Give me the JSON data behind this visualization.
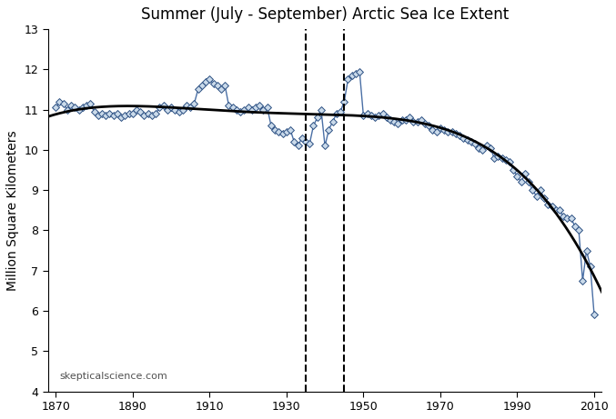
{
  "title": "Summer (July - September) Arctic Sea Ice Extent",
  "ylabel": "Million Square Kilometers",
  "xlim": [
    1868,
    2012
  ],
  "ylim": [
    4,
    13
  ],
  "xticks": [
    1870,
    1890,
    1910,
    1930,
    1950,
    1970,
    1990,
    2010
  ],
  "yticks": [
    4,
    5,
    6,
    7,
    8,
    9,
    10,
    11,
    12,
    13
  ],
  "dashed_lines": [
    1935,
    1945
  ],
  "watermark": "skepticalscience.com",
  "line_color": "#4A6FA5",
  "marker_face_color": "#CADAEA",
  "marker_edge_color": "#2B4F82",
  "trend_color": "black",
  "years": [
    1870,
    1871,
    1872,
    1873,
    1874,
    1875,
    1876,
    1877,
    1878,
    1879,
    1880,
    1881,
    1882,
    1883,
    1884,
    1885,
    1886,
    1887,
    1888,
    1889,
    1890,
    1891,
    1892,
    1893,
    1894,
    1895,
    1896,
    1897,
    1898,
    1899,
    1900,
    1901,
    1902,
    1903,
    1904,
    1905,
    1906,
    1907,
    1908,
    1909,
    1910,
    1911,
    1912,
    1913,
    1914,
    1915,
    1916,
    1917,
    1918,
    1919,
    1920,
    1921,
    1922,
    1923,
    1924,
    1925,
    1926,
    1927,
    1928,
    1929,
    1930,
    1931,
    1932,
    1933,
    1934,
    1935,
    1936,
    1937,
    1938,
    1939,
    1940,
    1941,
    1942,
    1943,
    1944,
    1945,
    1946,
    1947,
    1948,
    1949,
    1950,
    1951,
    1952,
    1953,
    1954,
    1955,
    1956,
    1957,
    1958,
    1959,
    1960,
    1961,
    1962,
    1963,
    1964,
    1965,
    1966,
    1967,
    1968,
    1969,
    1970,
    1971,
    1972,
    1973,
    1974,
    1975,
    1976,
    1977,
    1978,
    1979,
    1980,
    1981,
    1982,
    1983,
    1984,
    1985,
    1986,
    1987,
    1988,
    1989,
    1990,
    1991,
    1992,
    1993,
    1994,
    1995,
    1996,
    1997,
    1998,
    1999,
    2000,
    2001,
    2002,
    2003,
    2004,
    2005,
    2006,
    2007,
    2008,
    2009,
    2010
  ],
  "values": [
    11.05,
    11.2,
    11.15,
    11.0,
    11.1,
    11.05,
    11.0,
    11.05,
    11.1,
    11.15,
    10.95,
    10.85,
    10.9,
    10.85,
    10.9,
    10.85,
    10.9,
    10.8,
    10.85,
    10.9,
    10.9,
    11.0,
    10.95,
    10.85,
    10.9,
    10.85,
    10.9,
    11.05,
    11.1,
    11.0,
    11.05,
    11.0,
    10.95,
    11.0,
    11.1,
    11.05,
    11.15,
    11.5,
    11.6,
    11.7,
    11.75,
    11.65,
    11.6,
    11.5,
    11.6,
    11.1,
    11.05,
    11.0,
    10.95,
    11.0,
    11.05,
    11.0,
    11.05,
    11.1,
    11.0,
    11.05,
    10.6,
    10.5,
    10.45,
    10.4,
    10.45,
    10.5,
    10.2,
    10.1,
    10.3,
    10.2,
    10.15,
    10.6,
    10.8,
    11.0,
    10.1,
    10.5,
    10.7,
    10.9,
    10.95,
    11.2,
    11.75,
    11.85,
    11.9,
    11.95,
    10.85,
    10.9,
    10.85,
    10.8,
    10.85,
    10.9,
    10.8,
    10.75,
    10.7,
    10.65,
    10.75,
    10.75,
    10.8,
    10.7,
    10.7,
    10.75,
    10.65,
    10.6,
    10.5,
    10.45,
    10.55,
    10.5,
    10.45,
    10.45,
    10.4,
    10.35,
    10.3,
    10.25,
    10.2,
    10.15,
    10.05,
    10.0,
    10.1,
    10.05,
    9.8,
    9.85,
    9.8,
    9.75,
    9.7,
    9.5,
    9.35,
    9.2,
    9.4,
    9.2,
    9.0,
    8.85,
    9.0,
    8.8,
    8.65,
    8.6,
    8.5,
    8.5,
    8.35,
    8.3,
    8.3,
    8.1,
    8.0,
    6.75,
    7.5,
    7.1,
    5.9
  ]
}
